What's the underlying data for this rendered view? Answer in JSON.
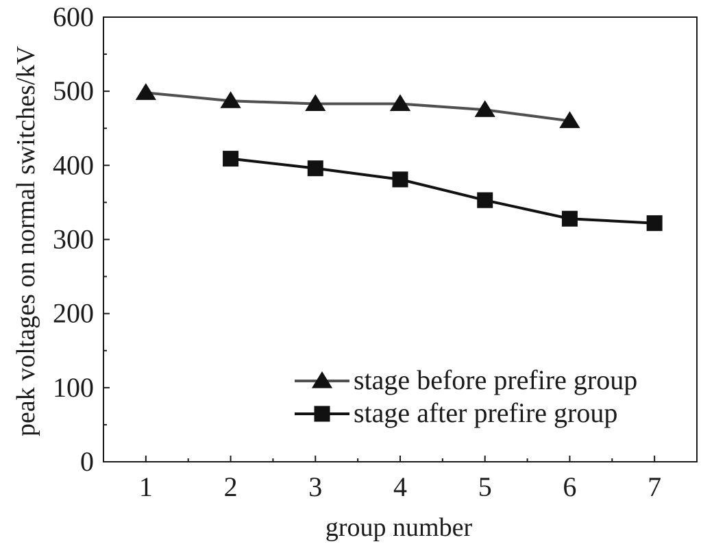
{
  "chart_data": {
    "type": "line",
    "xlabel": "group number",
    "ylabel": "peak voltages on normal switches/kV",
    "xlim": [
      0.5,
      7.5
    ],
    "ylim": [
      0,
      600
    ],
    "x_ticks": [
      "1",
      "2",
      "3",
      "4",
      "5",
      "6",
      "7"
    ],
    "y_ticks": [
      "0",
      "100",
      "200",
      "300",
      "400",
      "500",
      "600"
    ],
    "x_tick_values": [
      1,
      2,
      3,
      4,
      5,
      6,
      7
    ],
    "y_tick_values": [
      0,
      100,
      200,
      300,
      400,
      500,
      600
    ],
    "grid": false,
    "legend_position": "bottom-right",
    "series": [
      {
        "name": "stage before prefire group",
        "marker": "triangle",
        "color": "#505050",
        "x": [
          1,
          2,
          3,
          4,
          5,
          6
        ],
        "y": [
          498,
          487,
          483,
          483,
          475,
          460
        ]
      },
      {
        "name": "stage after prefire group",
        "marker": "square",
        "color": "#111111",
        "x": [
          2,
          3,
          4,
          5,
          6,
          7
        ],
        "y": [
          409,
          396,
          381,
          353,
          328,
          322
        ]
      }
    ]
  }
}
